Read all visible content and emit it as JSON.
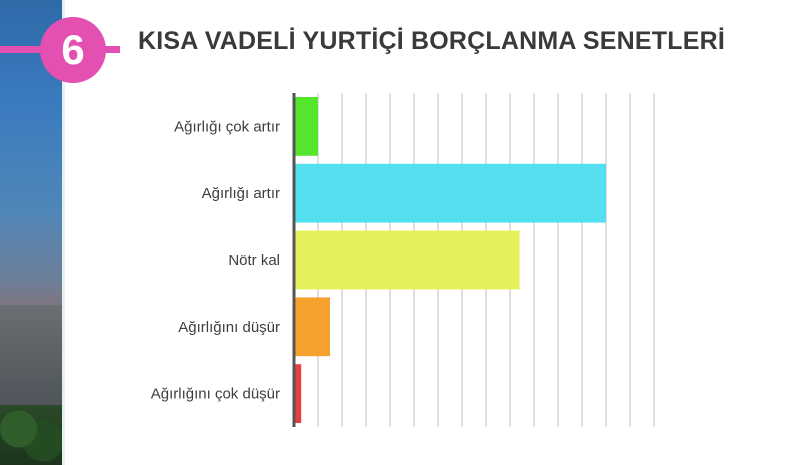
{
  "slide": {
    "number": "6",
    "title": "KISA VADELİ YURTİÇİ BORÇLANMA SENETLERİ"
  },
  "colors": {
    "badge": "#e44fb2",
    "gridline": "#d6d6d6",
    "axis": "#555555"
  },
  "chart_data": {
    "type": "bar",
    "orientation": "horizontal",
    "title": "KISA VADELİ YURTİÇİ BORÇLANMA SENETLERİ",
    "categories": [
      "Ağırlığı çok artır",
      "Ağırlığı artır",
      "Nötr kal",
      "Ağırlığını düşür",
      "Ağırlığını çok düşür"
    ],
    "values": [
      1,
      13,
      9.4,
      1.5,
      0.3
    ],
    "bar_colors": [
      "#53e62c",
      "#53dff0",
      "#e6f05a",
      "#f7a12f",
      "#e83f3f"
    ],
    "xlim": [
      0,
      15
    ],
    "grid": true,
    "legend": "none"
  }
}
